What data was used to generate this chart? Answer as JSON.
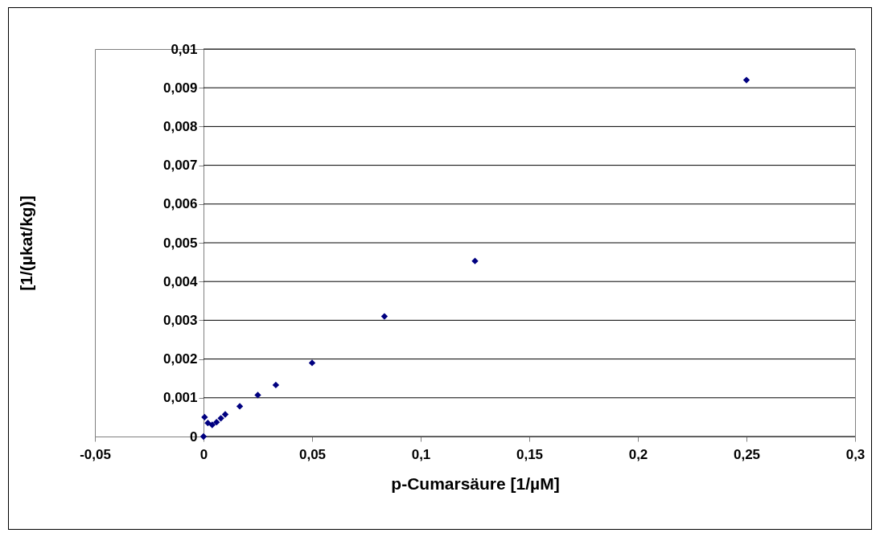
{
  "chart_data": {
    "type": "scatter",
    "xlabel": "p-Cumarsäure [1/µM]",
    "ylabel": "[1/(µkat/kg)]",
    "x": [
      0,
      0.0005,
      0.002,
      0.004,
      0.006,
      0.008,
      0.01,
      0.0167,
      0.025,
      0.0333,
      0.05,
      0.0833,
      0.125,
      0.25
    ],
    "series": [
      {
        "color": "#000080",
        "values": [
          0,
          0.0005,
          0.00035,
          0.0003,
          0.00037,
          0.00047,
          0.00057,
          0.00078,
          0.00107,
          0.00133,
          0.0019,
          0.0031,
          0.00453,
          0.0092
        ]
      }
    ],
    "xlim": [
      -0.05,
      0.3
    ],
    "xticks": [
      {
        "value": -0.05,
        "label": "-0,05"
      },
      0,
      {
        "value": 0.05,
        "label": "0,05"
      },
      {
        "value": 0.1,
        "label": "0,1"
      },
      {
        "value": 0.15,
        "label": "0,15"
      },
      {
        "value": 0.2,
        "label": "0,2"
      },
      {
        "value": 0.25,
        "label": "0,25"
      },
      {
        "value": 0.3,
        "label": "0,3"
      }
    ],
    "ylim": [
      0,
      0.01
    ],
    "yticks": [
      0,
      {
        "value": 0.001,
        "label": "0,001"
      },
      {
        "value": 0.002,
        "label": "0,002"
      },
      {
        "value": 0.003,
        "label": "0,003"
      },
      {
        "value": 0.004,
        "label": "0,004"
      },
      {
        "value": 0.005,
        "label": "0,005"
      },
      {
        "value": 0.006,
        "label": "0,006"
      },
      {
        "value": 0.007,
        "label": "0,007"
      },
      {
        "value": 0.008,
        "label": "0,008"
      },
      {
        "value": 0.009,
        "label": "0,009"
      },
      {
        "value": 0.01,
        "label": "0,01"
      }
    ],
    "grid": "y",
    "marker": "diamond",
    "legend": false
  }
}
